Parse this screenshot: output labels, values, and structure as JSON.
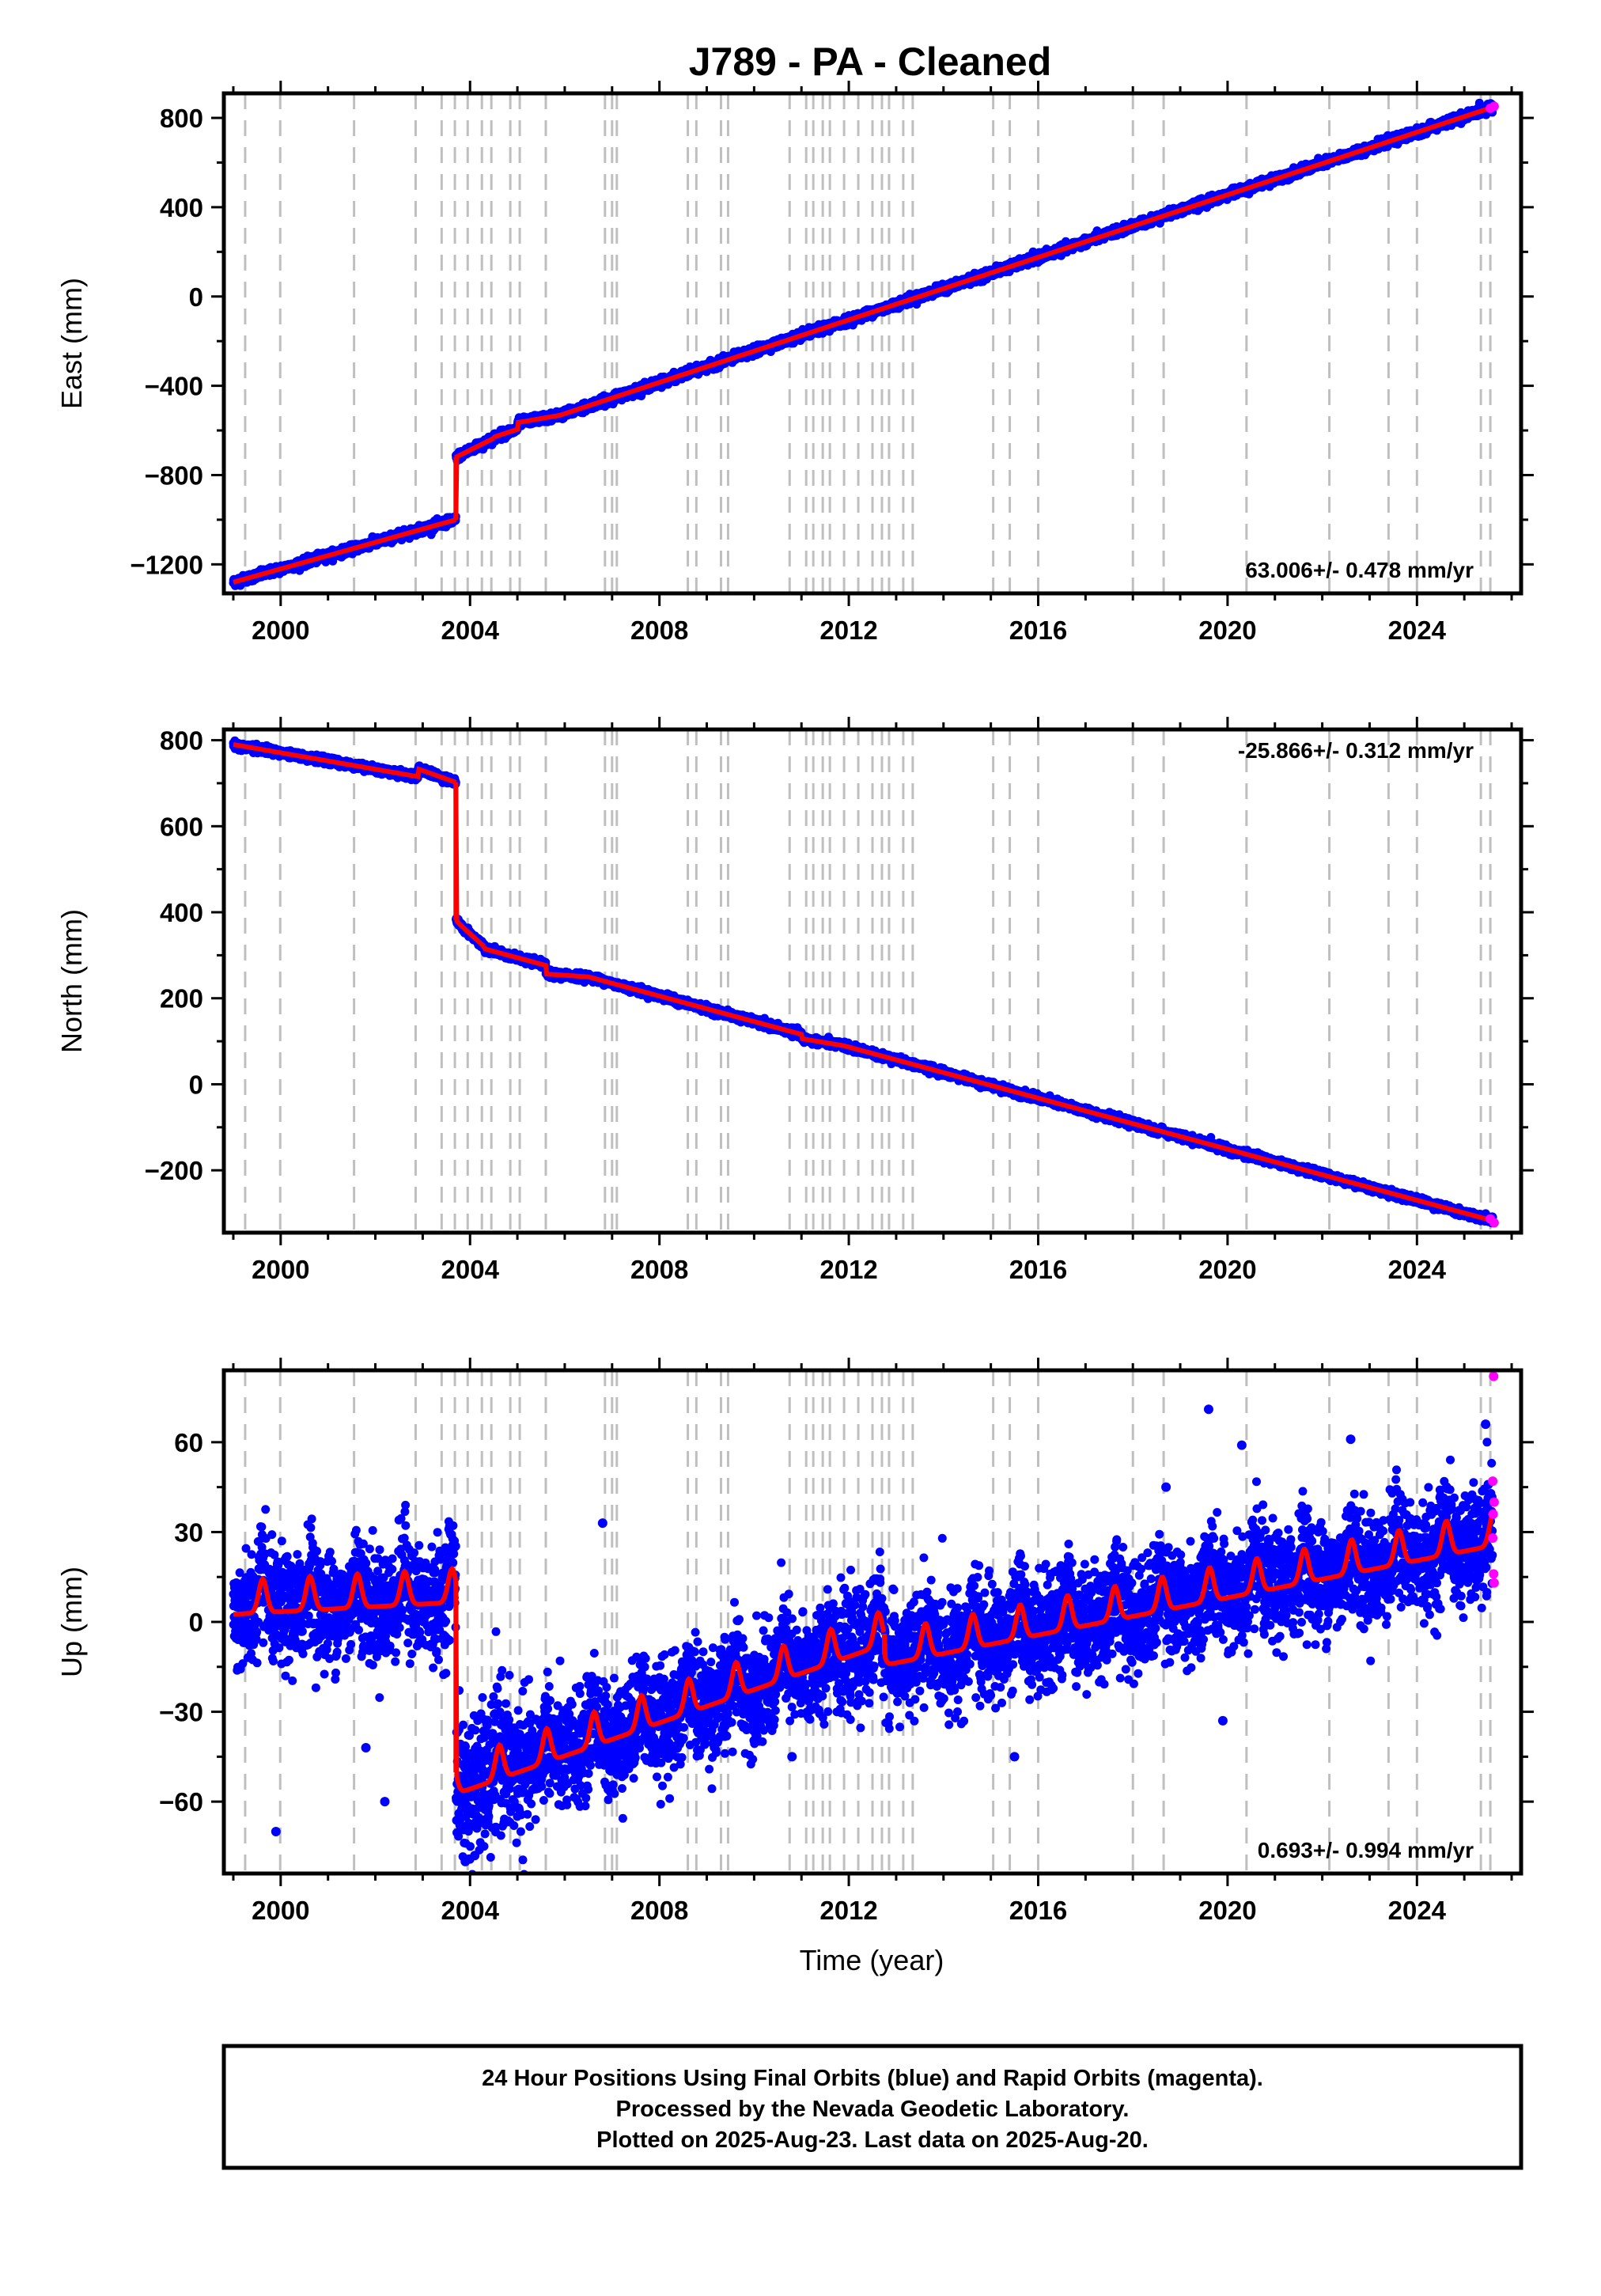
{
  "title": "J789  - PA - Cleaned",
  "xlabel": "Time (year)",
  "footer": {
    "line1": "24 Hour Positions Using Final Orbits (blue) and Rapid Orbits (magenta).",
    "line2": "Processed by the Nevada Geodetic Laboratory.",
    "line3": "Plotted on 2025-Aug-23. Last data on 2025-Aug-20."
  },
  "colors": {
    "final_orbits": "#0000ff",
    "rapid_orbits": "#ff00ff",
    "model": "#ff0000",
    "event_lines": "#bfbfbf"
  },
  "chart_data": [
    {
      "type": "scatter",
      "component": "East",
      "ylabel": "East (mm)",
      "rate": "63.006+/- 0.478 mm/yr",
      "rate_position": "bottom-right",
      "xlim": [
        1998.8,
        2026.2
      ],
      "ylim": [
        -1330,
        910
      ],
      "xticks": [
        2000,
        2004,
        2008,
        2012,
        2016,
        2020,
        2024
      ],
      "yticks": [
        -1200,
        -800,
        -400,
        0,
        400,
        800
      ],
      "ytick_labels": [
        "−1200",
        "−800",
        "−400",
        "0",
        "400",
        "800"
      ],
      "scatter_sd": 9,
      "trend": {
        "segments": [
          {
            "x": [
              1999.0,
              2003.7
            ],
            "y": [
              -1280,
              -1000
            ]
          },
          {
            "x": [
              2003.7,
              2004.5
            ],
            "y": [
              -720,
              -635
            ]
          },
          {
            "x": [
              2004.5,
              2025.63
            ],
            "y": [
              -630,
              850
            ]
          }
        ],
        "steps": [
          {
            "x": 2005.0,
            "dy": 30
          }
        ],
        "seasonal_amp": 0
      },
      "rapid_points": [
        {
          "x": 2025.55,
          "y": 843
        },
        {
          "x": 2025.63,
          "y": 852
        }
      ]
    },
    {
      "type": "scatter",
      "component": "North",
      "ylabel": "North (mm)",
      "rate": "-25.866+/- 0.312 mm/yr",
      "rate_position": "top-right",
      "xlim": [
        1998.8,
        2026.2
      ],
      "ylim": [
        -345,
        825
      ],
      "xticks": [
        2000,
        2004,
        2008,
        2012,
        2016,
        2020,
        2024
      ],
      "yticks": [
        -200,
        0,
        200,
        400,
        600,
        800
      ],
      "ytick_labels": [
        "−200",
        "0",
        "200",
        "400",
        "600",
        "800"
      ],
      "scatter_sd": 4,
      "trend": {
        "segments": [
          {
            "x": [
              1999.0,
              2003.7
            ],
            "y": [
              790,
              700
            ]
          },
          {
            "x": [
              2003.7,
              2004.3
            ],
            "y": [
              380,
              320
            ]
          },
          {
            "x": [
              2004.3,
              2025.63
            ],
            "y": [
              315,
              -318
            ]
          }
        ],
        "steps": [
          {
            "x": 2002.9,
            "dy": 18
          },
          {
            "x": 2005.6,
            "dy": -20
          },
          {
            "x": 2011.0,
            "dy": -10
          }
        ],
        "seasonal_amp": 0
      },
      "rapid_points": [
        {
          "x": 2025.55,
          "y": -313
        },
        {
          "x": 2025.63,
          "y": -322
        }
      ]
    },
    {
      "type": "scatter",
      "component": "Up",
      "ylabel": "Up (mm)",
      "rate": "0.693+/- 0.994 mm/yr",
      "rate_position": "bottom-right",
      "xlim": [
        1998.8,
        2026.2
      ],
      "ylim": [
        -84,
        84
      ],
      "xticks": [
        2000,
        2004,
        2008,
        2012,
        2016,
        2020,
        2024
      ],
      "yticks": [
        -60,
        -30,
        0,
        30,
        60
      ],
      "ytick_labels": [
        "−60",
        "−30",
        "0",
        "30",
        "60"
      ],
      "scatter_sd": 9,
      "trend": {
        "segments": [
          {
            "x": [
              1999.0,
              2003.7
            ],
            "y": [
              5,
              9
            ]
          },
          {
            "x": [
              2003.7,
              2012.75
            ],
            "y": [
              -55,
              -5
            ]
          },
          {
            "x": [
              2012.75,
              2025.63
            ],
            "y": [
              -12,
              28
            ]
          }
        ],
        "steps": [],
        "seasonal_amp": 7
      },
      "rapid_points": [
        {
          "x": 2025.62,
          "y": 82
        },
        {
          "x": 2025.6,
          "y": 47
        },
        {
          "x": 2025.63,
          "y": 40
        },
        {
          "x": 2025.61,
          "y": 36
        },
        {
          "x": 2025.6,
          "y": 28
        },
        {
          "x": 2025.62,
          "y": 16
        },
        {
          "x": 2025.63,
          "y": 13
        }
      ],
      "outliers": [
        {
          "x": 1999.9,
          "y": -70
        },
        {
          "x": 2002.2,
          "y": -60
        },
        {
          "x": 2019.6,
          "y": 71
        },
        {
          "x": 2020.3,
          "y": 59
        },
        {
          "x": 2022.6,
          "y": 61
        },
        {
          "x": 2019.9,
          "y": -33
        },
        {
          "x": 2015.5,
          "y": -45
        },
        {
          "x": 2003.9,
          "y": -80
        },
        {
          "x": 2004.1,
          "y": -78
        },
        {
          "x": 2001.8,
          "y": -42
        },
        {
          "x": 2010.8,
          "y": -45
        },
        {
          "x": 2006.8,
          "y": 33
        },
        {
          "x": 2018.7,
          "y": 45
        },
        {
          "x": 2025.45,
          "y": 66
        }
      ]
    }
  ],
  "event_lines": [
    1999.25,
    1999.99,
    2001.55,
    2002.85,
    2003.4,
    2003.68,
    2003.95,
    2004.25,
    2004.45,
    2004.85,
    2005.05,
    2005.6,
    2006.85,
    2007.0,
    2007.1,
    2008.6,
    2008.78,
    2009.3,
    2009.45,
    2010.75,
    2011.1,
    2011.25,
    2011.45,
    2011.6,
    2011.9,
    2012.2,
    2012.5,
    2012.7,
    2012.85,
    2013.15,
    2013.35,
    2015.05,
    2015.4,
    2016.0,
    2018.0,
    2018.65,
    2020.4,
    2022.15,
    2023.4,
    2024.0,
    2025.35,
    2025.55
  ]
}
